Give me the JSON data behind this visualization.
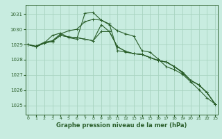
{
  "title": "Graphe pression niveau de la mer (hPa)",
  "background_color": "#c8ece0",
  "grid_color": "#a8d4c0",
  "line_color": "#2a5e2a",
  "x_ticks": [
    0,
    1,
    2,
    3,
    4,
    5,
    6,
    7,
    8,
    9,
    10,
    11,
    12,
    13,
    14,
    15,
    16,
    17,
    18,
    19,
    20,
    21,
    22,
    23
  ],
  "y_ticks": [
    1025,
    1026,
    1027,
    1028,
    1029,
    1030,
    1031
  ],
  "ylim": [
    1024.4,
    1031.6
  ],
  "xlim": [
    -0.3,
    23.3
  ],
  "series": [
    [
      1029.0,
      1028.9,
      1029.15,
      1029.25,
      1029.7,
      1029.9,
      1030.0,
      1030.5,
      1030.65,
      1030.6,
      1030.3,
      1029.9,
      1029.7,
      1029.55,
      1028.6,
      1028.5,
      1028.05,
      1027.55,
      1027.35,
      1027.05,
      1026.55,
      1026.05,
      1025.5,
      1025.1
    ],
    [
      1029.0,
      1028.85,
      1029.1,
      1029.2,
      1029.6,
      1029.5,
      1029.45,
      1029.35,
      1029.25,
      1030.3,
      1029.85,
      1028.85,
      1028.55,
      1028.4,
      1028.35,
      1028.15,
      1027.95,
      1027.85,
      1027.55,
      1027.15,
      1026.65,
      1026.35,
      1025.85,
      1025.1
    ],
    [
      1029.0,
      1028.85,
      1029.1,
      1029.6,
      1029.75,
      1029.45,
      1029.35,
      1031.05,
      1031.1,
      1030.6,
      1030.35,
      1028.6,
      1028.5,
      1028.4,
      1028.35,
      1028.15,
      1027.95,
      1027.85,
      1027.55,
      1027.2,
      1026.65,
      1026.35,
      1025.85,
      1025.1
    ],
    [
      1029.0,
      1028.85,
      1029.1,
      1029.2,
      1029.6,
      1029.5,
      1029.45,
      1029.35,
      1029.25,
      1029.85,
      1029.85,
      1028.85,
      1028.55,
      1028.4,
      1028.35,
      1028.15,
      1027.95,
      1027.85,
      1027.55,
      1027.15,
      1026.65,
      1026.35,
      1025.85,
      1025.1
    ]
  ]
}
